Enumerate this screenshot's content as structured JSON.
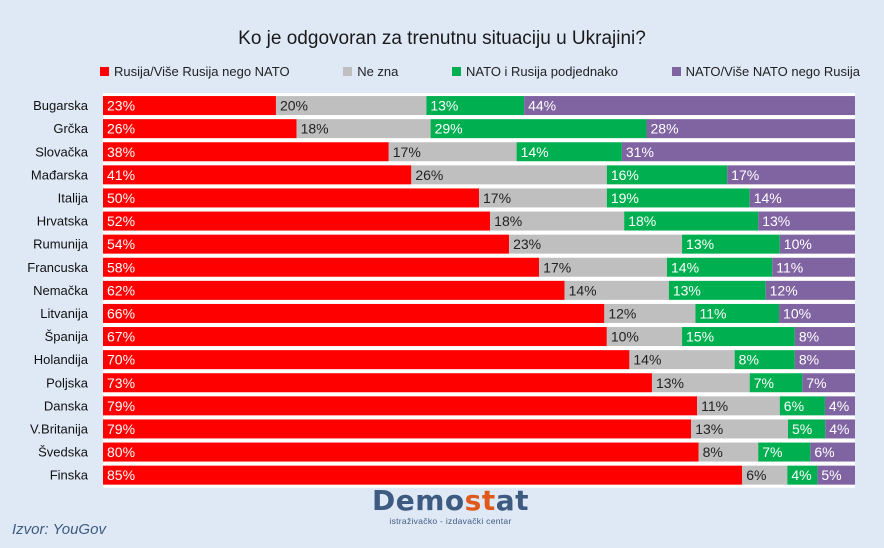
{
  "chart_data": {
    "type": "bar",
    "stacked": true,
    "orientation": "horizontal",
    "title": "Ko je odgovoran za trenutnu situaciju u Ukrajini?",
    "categories": [
      "Bugarska",
      "Grčka",
      "Slovačka",
      "Mađarska",
      "Italija",
      "Hrvatska",
      "Rumunija",
      "Francuska",
      "Nemačka",
      "Litvanija",
      "Španija",
      "Holandija",
      "Poljska",
      "Danska",
      "V.Britanija",
      "Švedska",
      "Finska"
    ],
    "series": [
      {
        "name": "Rusija/Više Rusija nego NATO",
        "color": "#ff0000",
        "values": [
          23,
          26,
          38,
          41,
          50,
          52,
          54,
          58,
          62,
          66,
          67,
          70,
          73,
          79,
          79,
          80,
          85
        ]
      },
      {
        "name": "Ne zna",
        "color": "#bfbfbf",
        "values": [
          20,
          18,
          17,
          26,
          17,
          18,
          23,
          17,
          14,
          12,
          10,
          14,
          13,
          11,
          13,
          8,
          6
        ]
      },
      {
        "name": "NATO i Rusija podjednako",
        "color": "#00b050",
        "values": [
          13,
          29,
          14,
          16,
          19,
          18,
          13,
          14,
          13,
          11,
          15,
          8,
          7,
          6,
          5,
          7,
          4
        ]
      },
      {
        "name": "NATO/Više NATO nego Rusija",
        "color": "#8064a2",
        "values": [
          44,
          28,
          31,
          17,
          14,
          13,
          10,
          11,
          12,
          10,
          8,
          8,
          7,
          4,
          4,
          6,
          5
        ]
      }
    ],
    "value_suffix": "%",
    "legend_position": "top"
  },
  "brand": {
    "name_part1": "Demo",
    "name_part2": "st",
    "name_part3": "at",
    "tagline": "istraživačko - izdavački  centar"
  },
  "source": "Izvor: YouGov"
}
